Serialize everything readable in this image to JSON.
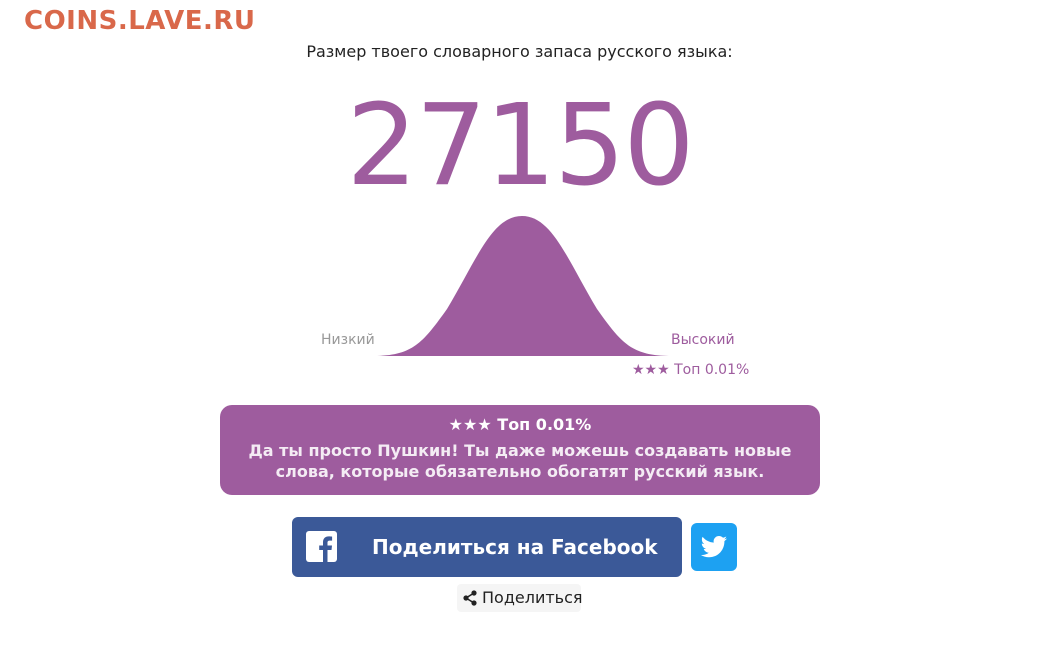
{
  "site": {
    "logo": "COINS.LAVE.RU"
  },
  "result": {
    "heading": "Размер твоего словарного запаса русского языка:",
    "score": "27150",
    "fraction_percentile": 0.9999
  },
  "distribution": {
    "low_label": "Низкий",
    "high_label": "Высокий",
    "rank_label": "★★★ Топ 0.01%"
  },
  "verdict": {
    "rank": "★★★ Топ 0.01%",
    "text": "Да ты просто Пушкин! Ты даже можешь создавать новые слова, которые обязательно обогатят русский язык."
  },
  "share": {
    "facebook_label": "Поделиться на Facebook",
    "twitter_icon": "twitter-bird-icon",
    "share_label": "Поделиться"
  },
  "colors": {
    "accent": "#9e5c9e",
    "logo": "#d9684a",
    "facebook": "#3b5998",
    "twitter": "#1da1f2"
  }
}
